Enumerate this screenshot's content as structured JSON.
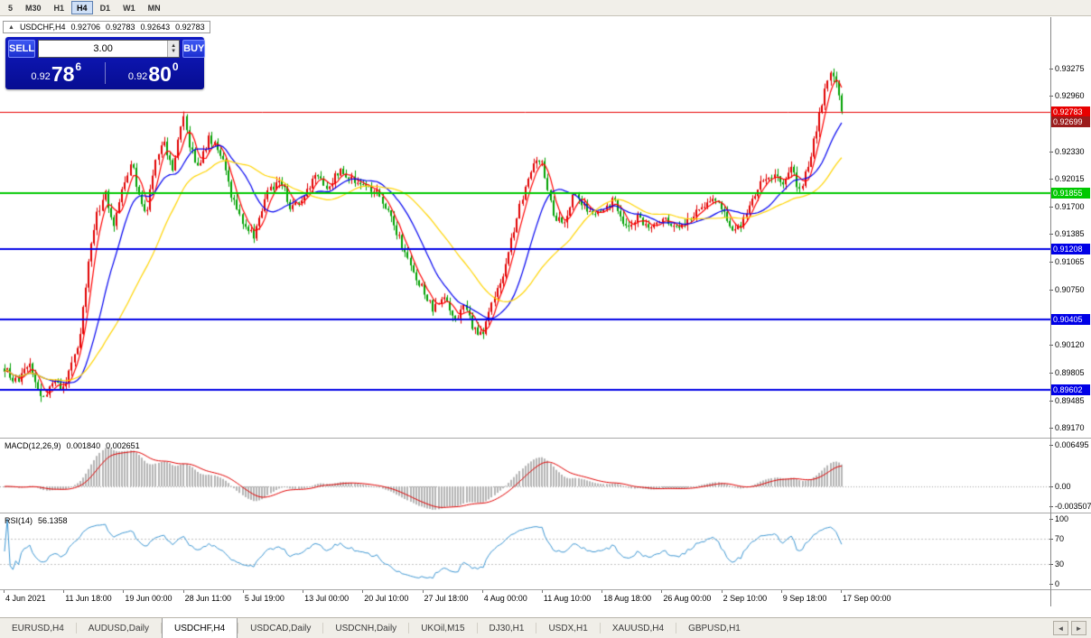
{
  "icons": {
    "collapse_arrow": "▲",
    "spinner_up": "▲",
    "spinner_down": "▼",
    "scroll_left": "◄",
    "scroll_right": "►"
  },
  "toolbar": {
    "timeframes": [
      {
        "label": "5",
        "active": false
      },
      {
        "label": "M30",
        "active": false
      },
      {
        "label": "H1",
        "active": false
      },
      {
        "label": "H4",
        "active": true
      },
      {
        "label": "D1",
        "active": false
      },
      {
        "label": "W1",
        "active": false
      },
      {
        "label": "MN",
        "active": false
      }
    ]
  },
  "chart_header": {
    "symbol_period": "USDCHF,H4",
    "open": "0.92706",
    "high": "0.92783",
    "low": "0.92643",
    "close": "0.92783"
  },
  "trade_panel": {
    "sell_label": "SELL",
    "buy_label": "BUY",
    "volume": "3.00",
    "sell_price": {
      "prefix": "0.92",
      "big": "78",
      "pip": "6"
    },
    "buy_price": {
      "prefix": "0.92",
      "big": "80",
      "pip": "0"
    }
  },
  "chart_data": {
    "type": "candlestick",
    "symbol": "USDCHF",
    "timeframe": "H4",
    "up_color": "#e00000",
    "down_color": "#00a000",
    "y_axis": {
      "range": [
        0.8906,
        0.9386
      ],
      "ticks": [
        "0.93275",
        "0.92960",
        "0.92645",
        "0.92330",
        "0.92015",
        "0.91700",
        "0.91385",
        "0.91065",
        "0.90750",
        "0.90435",
        "0.90120",
        "0.89805",
        "0.89485",
        "0.89170"
      ]
    },
    "x_labels": [
      "4 Jun 2021",
      "11 Jun 18:00",
      "19 Jun 00:00",
      "28 Jun 11:00",
      "5 Jul 19:00",
      "13 Jul 00:00",
      "20 Jul 10:00",
      "27 Jul 18:00",
      "4 Aug 00:00",
      "11 Aug 10:00",
      "18 Aug 18:00",
      "26 Aug 00:00",
      "2 Sep 10:00",
      "9 Sep 18:00",
      "17 Sep 00:00"
    ],
    "hlines": [
      {
        "price": 0.92783,
        "label": "0.92783",
        "color": "#e80000",
        "width": 1
      },
      {
        "price": 0.91855,
        "label": "0.91855",
        "color": "#00c800",
        "width": 2
      },
      {
        "price": 0.91208,
        "label": "0.91208",
        "color": "#0000e6",
        "width": 2
      },
      {
        "price": 0.90405,
        "label": "0.90405",
        "color": "#0000e6",
        "width": 2
      },
      {
        "price": 0.89602,
        "label": "0.89602",
        "color": "#0000e6",
        "width": 2
      }
    ],
    "bid_tag": {
      "label": "0.92699",
      "price": 0.92699,
      "bg": "#9b1c1c"
    },
    "candle_count": 300,
    "price_path": [
      [
        0,
        0.8985
      ],
      [
        0.015,
        0.8968
      ],
      [
        0.03,
        0.899
      ],
      [
        0.045,
        0.8948
      ],
      [
        0.058,
        0.897
      ],
      [
        0.071,
        0.896
      ],
      [
        0.08,
        0.899
      ],
      [
        0.09,
        0.902
      ],
      [
        0.1,
        0.9105
      ],
      [
        0.11,
        0.916
      ],
      [
        0.12,
        0.9185
      ],
      [
        0.13,
        0.915
      ],
      [
        0.143,
        0.9195
      ],
      [
        0.152,
        0.922
      ],
      [
        0.16,
        0.918
      ],
      [
        0.17,
        0.9165
      ],
      [
        0.18,
        0.9225
      ],
      [
        0.19,
        0.9245
      ],
      [
        0.2,
        0.921
      ],
      [
        0.214,
        0.9272
      ],
      [
        0.222,
        0.9235
      ],
      [
        0.232,
        0.9215
      ],
      [
        0.244,
        0.9248
      ],
      [
        0.258,
        0.923
      ],
      [
        0.27,
        0.9185
      ],
      [
        0.286,
        0.915
      ],
      [
        0.298,
        0.9136
      ],
      [
        0.315,
        0.9188
      ],
      [
        0.33,
        0.92
      ],
      [
        0.342,
        0.9168
      ],
      [
        0.357,
        0.9178
      ],
      [
        0.37,
        0.9205
      ],
      [
        0.385,
        0.9192
      ],
      [
        0.4,
        0.921
      ],
      [
        0.415,
        0.92
      ],
      [
        0.429,
        0.9196
      ],
      [
        0.445,
        0.9185
      ],
      [
        0.46,
        0.9158
      ],
      [
        0.478,
        0.912
      ],
      [
        0.49,
        0.9088
      ],
      [
        0.5,
        0.9075
      ],
      [
        0.512,
        0.9052
      ],
      [
        0.525,
        0.9065
      ],
      [
        0.538,
        0.904
      ],
      [
        0.55,
        0.9058
      ],
      [
        0.56,
        0.903
      ],
      [
        0.571,
        0.9024
      ],
      [
        0.583,
        0.906
      ],
      [
        0.596,
        0.9095
      ],
      [
        0.61,
        0.915
      ],
      [
        0.625,
        0.9205
      ],
      [
        0.636,
        0.9228
      ],
      [
        0.643,
        0.9218
      ],
      [
        0.655,
        0.916
      ],
      [
        0.668,
        0.915
      ],
      [
        0.68,
        0.9185
      ],
      [
        0.695,
        0.9168
      ],
      [
        0.714,
        0.9162
      ],
      [
        0.728,
        0.918
      ],
      [
        0.742,
        0.9145
      ],
      [
        0.755,
        0.9158
      ],
      [
        0.77,
        0.9142
      ],
      [
        0.786,
        0.916
      ],
      [
        0.8,
        0.9146
      ],
      [
        0.815,
        0.9155
      ],
      [
        0.83,
        0.917
      ],
      [
        0.845,
        0.9175
      ],
      [
        0.857,
        0.917
      ],
      [
        0.872,
        0.9138
      ],
      [
        0.888,
        0.9165
      ],
      [
        0.905,
        0.92
      ],
      [
        0.918,
        0.9208
      ],
      [
        0.929,
        0.9192
      ],
      [
        0.94,
        0.9212
      ],
      [
        0.95,
        0.9188
      ],
      [
        0.962,
        0.9225
      ],
      [
        0.975,
        0.9282
      ],
      [
        0.985,
        0.9325
      ],
      [
        0.993,
        0.931
      ],
      [
        1,
        0.9278
      ]
    ],
    "last_close": 0.92783,
    "moving_averages": [
      {
        "period": 5,
        "color": "#ff0000"
      },
      {
        "period": 16,
        "color": "#0000f0"
      },
      {
        "period": 36,
        "color": "#ffd400"
      }
    ],
    "indicators": [
      {
        "type": "macd",
        "label": "MACD(12,26,9)",
        "main_value": "0.001840",
        "signal_value": "0.002651",
        "params": [
          12,
          26,
          9
        ],
        "axis_labels": [
          "0.006495",
          "0.00",
          "-0.003507"
        ],
        "range": [
          -0.0036,
          0.0066
        ],
        "histogram_color": "#b4b4b4",
        "signal_color": "#e00000"
      },
      {
        "type": "rsi",
        "label": "RSI(14)",
        "value": "56.1358",
        "period": 14,
        "axis_labels": [
          100,
          70,
          30,
          0
        ],
        "levels": [
          70,
          30
        ],
        "line_color": "#3d96d2",
        "range": [
          0,
          100
        ]
      }
    ]
  },
  "tabs": {
    "items": [
      {
        "label": "EURUSD,H4"
      },
      {
        "label": "AUDUSD,Daily"
      },
      {
        "label": "USDCHF,H4"
      },
      {
        "label": "USDCAD,Daily"
      },
      {
        "label": "USDCNH,Daily"
      },
      {
        "label": "UKOil,M15"
      },
      {
        "label": "DJ30,H1"
      },
      {
        "label": "USDX,H1"
      },
      {
        "label": "XAUUSD,H4"
      },
      {
        "label": "GBPUSD,H1"
      }
    ],
    "active_index": 2
  }
}
